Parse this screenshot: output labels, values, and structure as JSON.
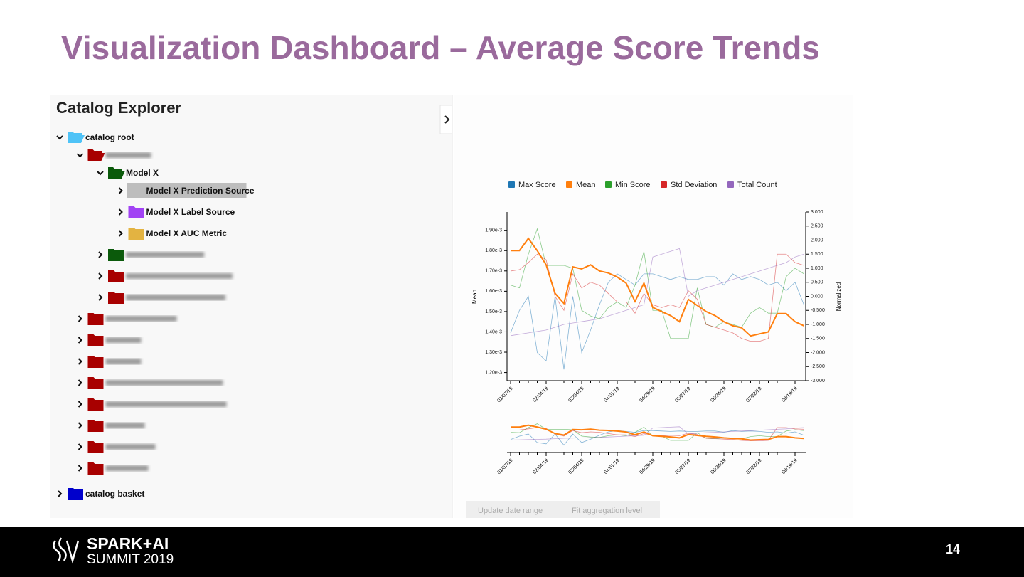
{
  "header": {
    "title": "Visualization Dashboard – Average Score Trends"
  },
  "tree": {
    "title": "Catalog Explorer",
    "nodes": [
      {
        "label": "catalog root",
        "color": "#4fc3f7",
        "expanded": true,
        "children": [
          {
            "color": "#a80000",
            "expanded": true,
            "children": [
              {
                "label": "Model X",
                "color": "#0b5a0b",
                "expanded": true,
                "children": [
                  {
                    "label": "Model X Prediction Source",
                    "color": "#a142f4",
                    "selected": true
                  },
                  {
                    "label": "Model X Label Source",
                    "color": "#a142f4"
                  },
                  {
                    "label": "Model X AUC Metric",
                    "color": "#e3b341"
                  }
                ]
              },
              {
                "color": "#0b5a0b"
              },
              {
                "color": "#a80000"
              },
              {
                "color": "#a80000"
              }
            ]
          },
          {
            "color": "#a80000"
          },
          {
            "color": "#a80000"
          },
          {
            "color": "#a80000"
          },
          {
            "color": "#a80000"
          },
          {
            "color": "#a80000"
          },
          {
            "color": "#a80000"
          },
          {
            "color": "#a80000"
          },
          {
            "color": "#a80000"
          }
        ]
      },
      {
        "label": "catalog basket",
        "color": "#0000cc"
      }
    ]
  },
  "chart_data": {
    "type": "line",
    "categories": [
      "01/07/19",
      null,
      null,
      null,
      "02/04/19",
      null,
      null,
      null,
      "03/04/19",
      null,
      null,
      null,
      "04/01/19",
      null,
      null,
      null,
      "04/29/19",
      null,
      null,
      null,
      "05/27/19",
      null,
      null,
      null,
      "06/24/19",
      null,
      null,
      null,
      "07/22/19",
      null,
      null,
      null,
      "08/19/19",
      null
    ],
    "y_label": "Mean",
    "y2_label": "Normalized",
    "ylim": [
      0.00116,
      0.00199
    ],
    "yticks": [
      {
        "value": 0.0012,
        "label": "1.20e-3"
      },
      {
        "value": 0.0013,
        "label": "1.30e-3"
      },
      {
        "value": 0.0014,
        "label": "1.40e-3"
      },
      {
        "value": 0.0015,
        "label": "1.50e-3"
      },
      {
        "value": 0.0016,
        "label": "1.60e-3"
      },
      {
        "value": 0.0017,
        "label": "1.70e-3"
      },
      {
        "value": 0.0018,
        "label": "1.80e-3"
      },
      {
        "value": 0.0019,
        "label": "1.90e-3"
      }
    ],
    "y2lim": [
      -3,
      3
    ],
    "y2ticks": [
      {
        "value": 3,
        "label": "3.000"
      },
      {
        "value": 2.5,
        "label": "2.500"
      },
      {
        "value": 2,
        "label": "2.000"
      },
      {
        "value": 1.5,
        "label": "1.500"
      },
      {
        "value": 1,
        "label": "1.000"
      },
      {
        "value": 0.5,
        "label": "0.500"
      },
      {
        "value": 0,
        "label": "0.000"
      },
      {
        "value": -0.5,
        "label": "-0.500"
      },
      {
        "value": -1,
        "label": "-1.000"
      },
      {
        "value": -1.5,
        "label": "-1.500"
      },
      {
        "value": -2,
        "label": "-2.000"
      },
      {
        "value": -2.5,
        "label": "-2.500"
      },
      {
        "value": -3,
        "label": "-3.000"
      }
    ],
    "series": [
      {
        "name": "Max Score",
        "color": "#1f77b4",
        "axis": "y2",
        "values": [
          -1.3,
          -0.5,
          0.0,
          -2.0,
          -2.3,
          0.0,
          -2.6,
          0.0,
          -2.0,
          -1.2,
          -0.3,
          0.5,
          0.8,
          0.6,
          0.4,
          0.8,
          0.8,
          0.7,
          0.6,
          0.7,
          0.6,
          0.6,
          0.7,
          0.7,
          0.4,
          0.8,
          0.6,
          0.7,
          0.6,
          0.4,
          0.5,
          0.2,
          0.5,
          -0.3
        ]
      },
      {
        "name": "Mean",
        "color": "#ff7f0e",
        "values": [
          0.0018,
          0.0018,
          0.00186,
          0.0018,
          0.00173,
          0.00159,
          0.00154,
          0.00172,
          0.00171,
          0.00173,
          0.0017,
          0.00169,
          0.00167,
          0.00164,
          0.00155,
          0.00164,
          0.00152,
          0.0015,
          0.00148,
          0.00145,
          0.00156,
          0.00153,
          0.0015,
          0.00148,
          0.00145,
          0.00143,
          0.00142,
          0.00138,
          0.00139,
          0.0014,
          0.00149,
          0.00149,
          0.00145,
          0.00143
        ]
      },
      {
        "name": "Min Score",
        "color": "#2ca02c",
        "axis": "y2",
        "values": [
          0.4,
          0.3,
          1.5,
          2.4,
          1.1,
          1.1,
          1.1,
          1.0,
          -0.5,
          -0.7,
          -0.8,
          -0.4,
          -0.2,
          -0.4,
          0.4,
          1.6,
          -0.5,
          -0.5,
          -1.5,
          -1.5,
          -1.5,
          0.3,
          -1.0,
          -1.1,
          -0.9,
          -1.0,
          -1.1,
          -0.6,
          -0.4,
          -0.6,
          -0.6,
          0.7,
          1.0,
          0.8
        ]
      },
      {
        "name": "Std Deviation",
        "color": "#d62728",
        "axis": "y2",
        "values": [
          0.9,
          0.95,
          1.2,
          1.5,
          1.3,
          0.0,
          -0.5,
          0.8,
          0.3,
          0.5,
          0.4,
          0.1,
          -0.2,
          -0.2,
          -0.6,
          0.1,
          -0.3,
          -0.4,
          -0.3,
          -0.4,
          0.2,
          -0.1,
          -1.0,
          -1.1,
          -1.2,
          -1.3,
          -1.5,
          -1.6,
          -1.6,
          -1.5,
          1.5,
          1.5,
          1.2,
          1.1
        ]
      },
      {
        "name": "Total Count",
        "color": "#9467bd",
        "axis": "y2",
        "values": [
          -1.4,
          -1.35,
          -1.3,
          -1.25,
          -1.2,
          -1.1,
          -1.0,
          -0.95,
          -0.9,
          -0.85,
          -0.8,
          -0.7,
          -0.6,
          -0.5,
          -0.4,
          -0.3,
          1.4,
          1.5,
          1.6,
          1.7,
          0.0,
          0.2,
          0.3,
          0.4,
          0.5,
          0.6,
          0.7,
          0.8,
          0.9,
          1.0,
          1.1,
          1.2,
          1.4,
          1.5
        ]
      }
    ]
  },
  "buttons": [
    "Update date range",
    "Fit aggregation level"
  ],
  "footer": {
    "logo_top": "SPARK+AI",
    "logo_bottom": "SUMMIT 2019",
    "page": "14"
  }
}
